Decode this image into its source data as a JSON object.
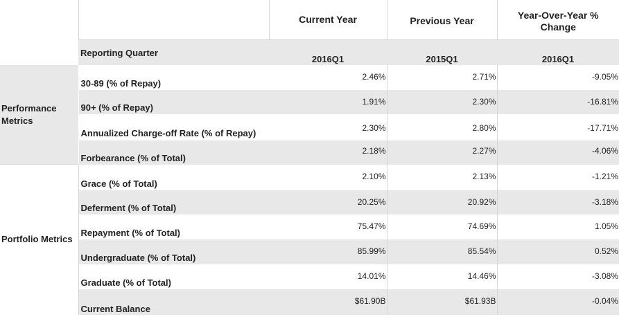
{
  "header": {
    "col1": "Current Year",
    "col2": "Previous Year",
    "col3": "Year-Over-Year % Change"
  },
  "quarter_row": {
    "label": "Reporting Quarter",
    "values": [
      "2016Q1",
      "2015Q1",
      "2016Q1"
    ]
  },
  "groups": {
    "performance": "Performance Metrics",
    "portfolio": "Portfolio Metrics"
  },
  "rows": [
    {
      "label": "30-89 (% of Repay)",
      "current": "2.46%",
      "previous": "2.71%",
      "change": "-9.05%"
    },
    {
      "label": "90+ (% of Repay)",
      "current": "1.91%",
      "previous": "2.30%",
      "change": "-16.81%"
    },
    {
      "label": "Annualized Charge-off Rate (% of Repay)",
      "current": "2.30%",
      "previous": "2.80%",
      "change": "-17.71%"
    },
    {
      "label": "Forbearance (% of Total)",
      "current": "2.18%",
      "previous": "2.27%",
      "change": "-4.06%"
    },
    {
      "label": "Grace (% of Total)",
      "current": "2.10%",
      "previous": "2.13%",
      "change": "-1.21%"
    },
    {
      "label": "Deferment (% of Total)",
      "current": "20.25%",
      "previous": "20.92%",
      "change": "-3.18%"
    },
    {
      "label": "Repayment (% of Total)",
      "current": "75.47%",
      "previous": "74.69%",
      "change": "1.05%"
    },
    {
      "label": "Undergraduate (% of Total)",
      "current": "85.99%",
      "previous": "85.54%",
      "change": "0.52%"
    },
    {
      "label": "Graduate (% of Total)",
      "current": "14.01%",
      "previous": "14.46%",
      "change": "-3.08%"
    },
    {
      "label": "Current Balance",
      "current": "$61.90B",
      "previous": "$61.93B",
      "change": "-0.04%"
    }
  ],
  "colors": {
    "shade": "#e8e8e8",
    "rule": "#d6d6d6",
    "text": "#222222"
  }
}
